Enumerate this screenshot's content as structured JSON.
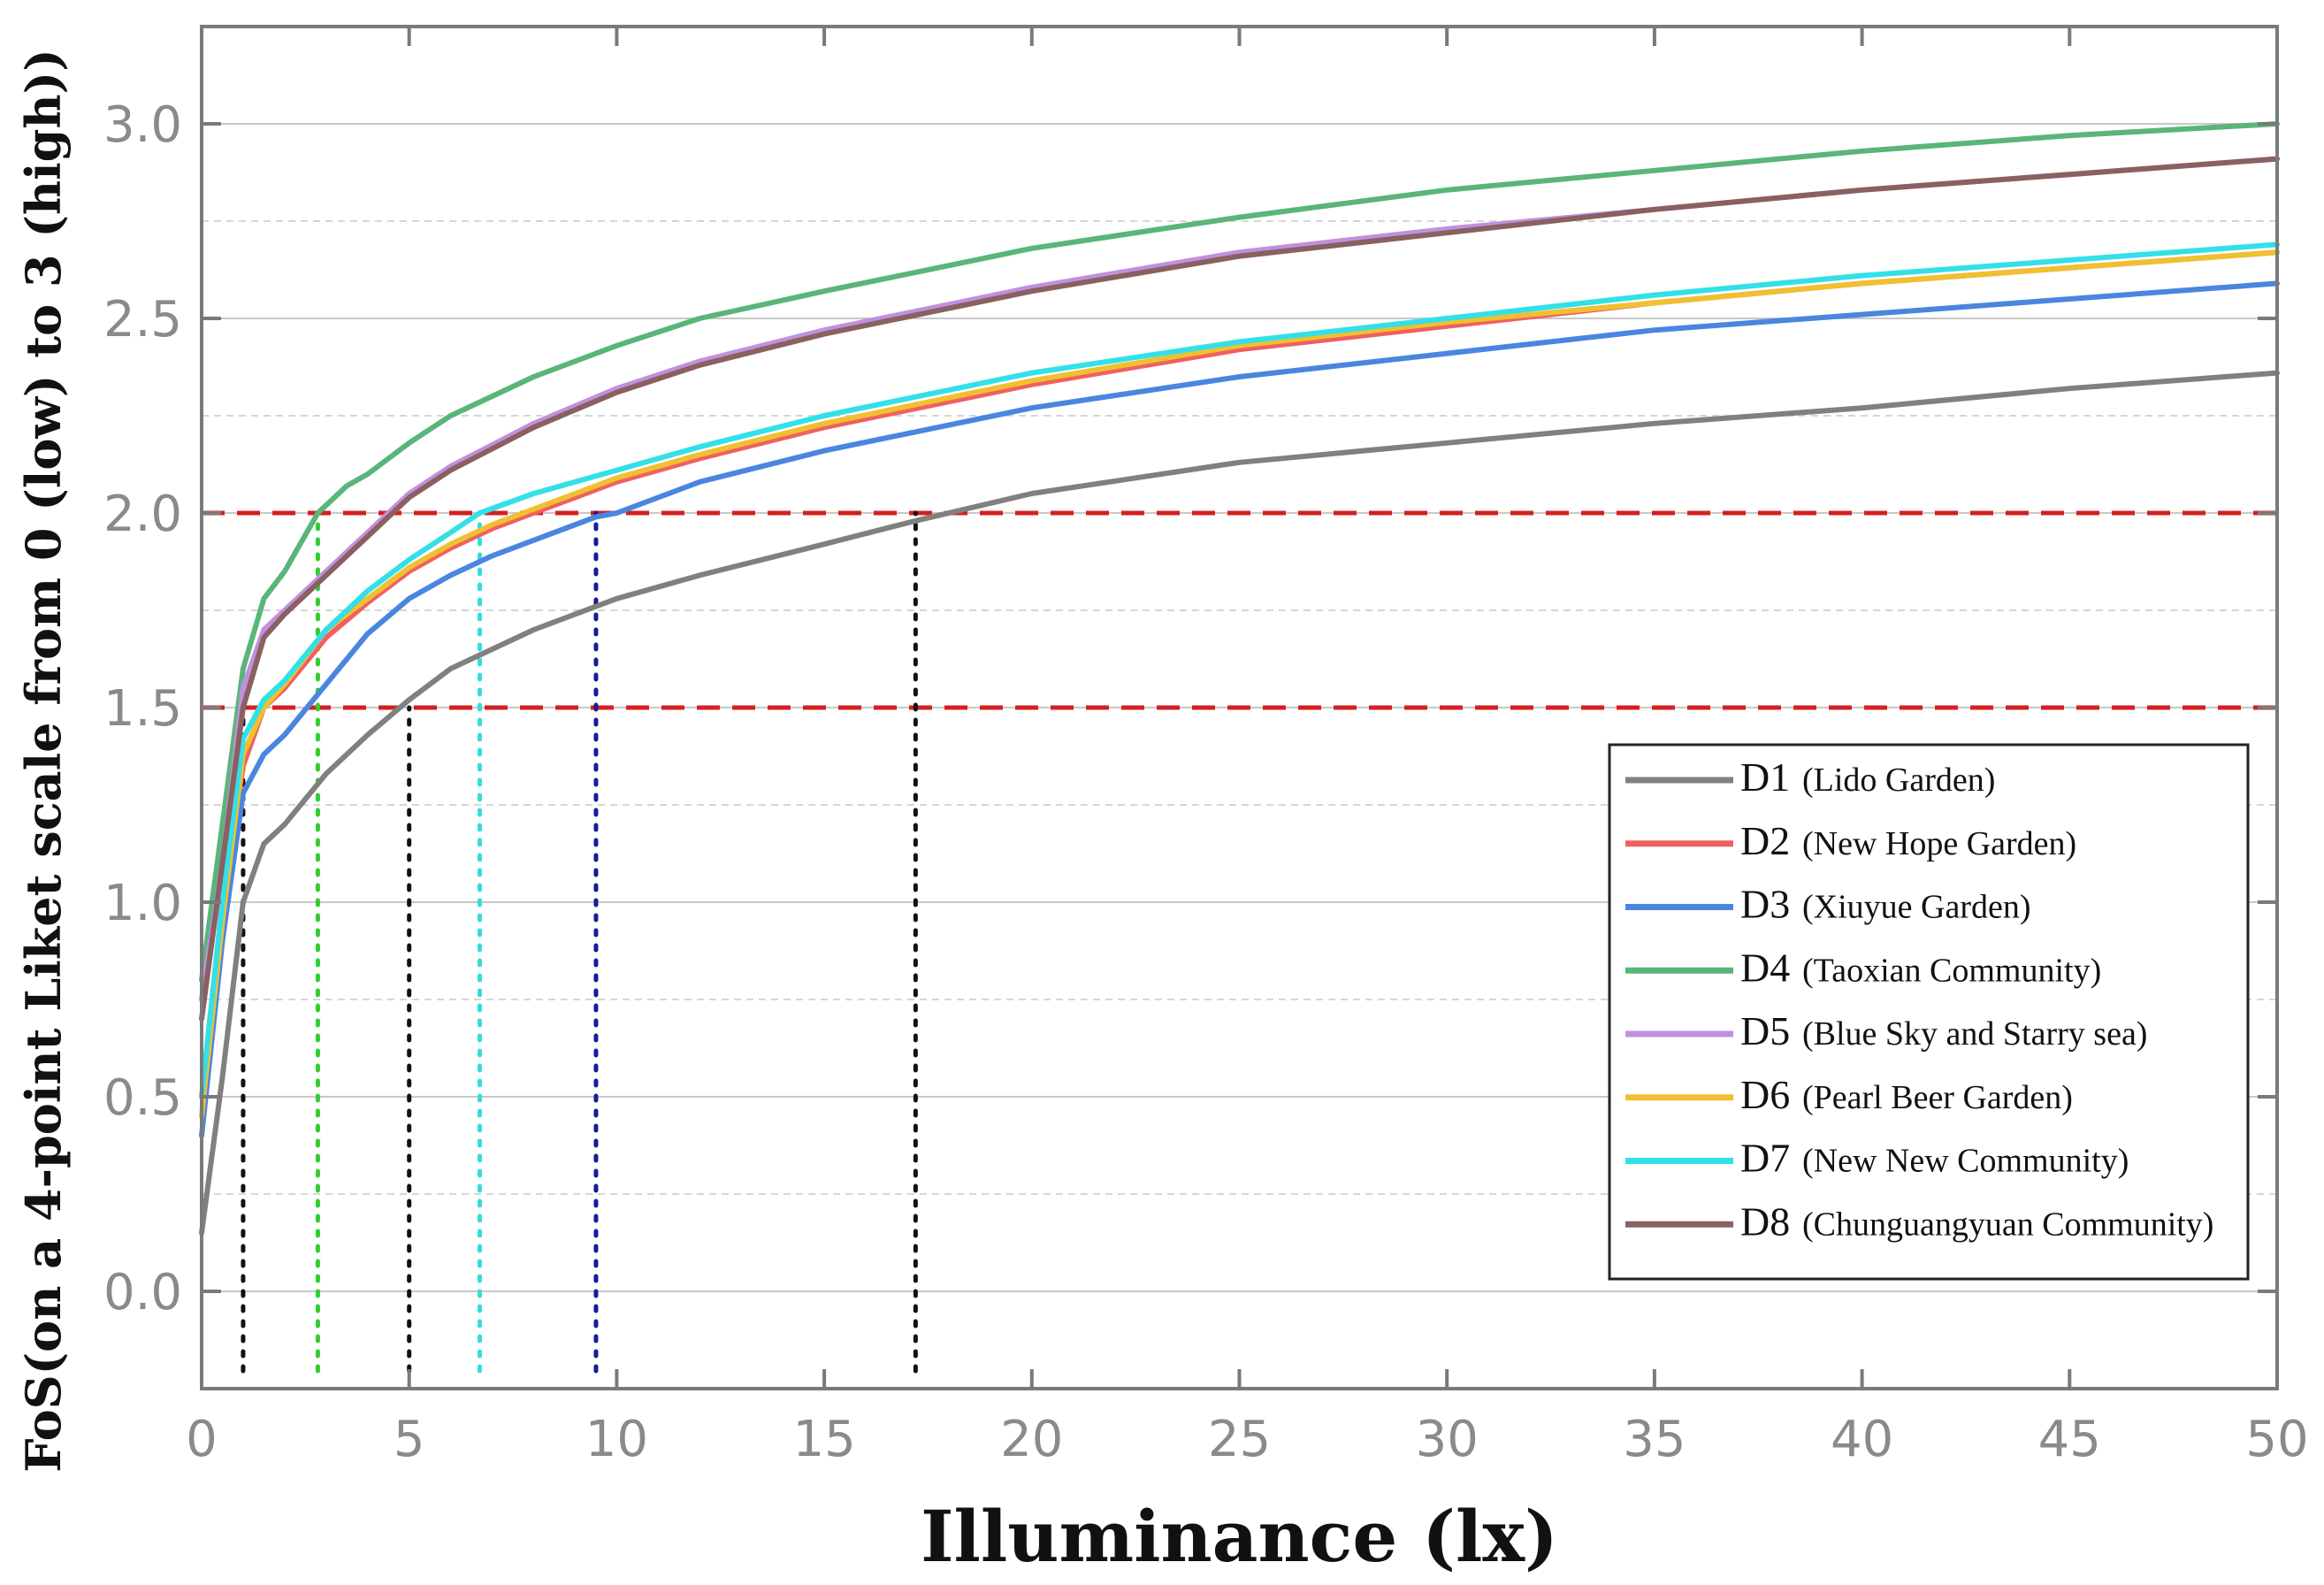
{
  "chart_data": {
    "type": "line",
    "title": "",
    "xlabel": "Illuminance (lx)",
    "ylabel": "FoS(on a 4-point Liket scale from 0 (low) to 3 (high))",
    "xlim": [
      0,
      50
    ],
    "ylim": [
      -0.25,
      3.25
    ],
    "xticks": [
      0,
      5,
      10,
      15,
      20,
      25,
      30,
      35,
      40,
      45,
      50
    ],
    "yticks": [
      0.0,
      0.5,
      1.0,
      1.5,
      2.0,
      2.5,
      3.0
    ],
    "xtick_labels": [
      "0",
      "5",
      "10",
      "15",
      "20",
      "25",
      "30",
      "35",
      "40",
      "45",
      "50"
    ],
    "ytick_labels": [
      "0.0",
      "0.5",
      "1.0",
      "1.5",
      "2.0",
      "2.5",
      "3.0"
    ],
    "grid": true,
    "legend_position": "lower-right",
    "reference_lines": [
      {
        "y": 2.0,
        "color": "#d42020",
        "style": "dashed"
      },
      {
        "y": 1.5,
        "color": "#d42020",
        "style": "dashed"
      }
    ],
    "threshold_markers": [
      {
        "x": 1.0,
        "y_top": 1.5,
        "color": "#111111"
      },
      {
        "x": 2.8,
        "y_top": 2.0,
        "color": "#33cc33"
      },
      {
        "x": 5.0,
        "y_top": 1.5,
        "color": "#111111"
      },
      {
        "x": 6.7,
        "y_top": 2.0,
        "color": "#33dddd"
      },
      {
        "x": 9.5,
        "y_top": 2.0,
        "color": "#1a1a99"
      },
      {
        "x": 17.2,
        "y_top": 2.0,
        "color": "#111111"
      }
    ],
    "series": [
      {
        "name": "D1",
        "description": "(Lido Garden)",
        "color": "#808080",
        "x": [
          0,
          0.5,
          1,
          1.5,
          2,
          3,
          4,
          5,
          6,
          8,
          10,
          12,
          15,
          17.2,
          20,
          25,
          30,
          35,
          40,
          45,
          50
        ],
        "y": [
          0.15,
          0.55,
          1.0,
          1.15,
          1.2,
          1.33,
          1.43,
          1.52,
          1.6,
          1.7,
          1.78,
          1.84,
          1.92,
          1.98,
          2.05,
          2.13,
          2.18,
          2.23,
          2.27,
          2.32,
          2.36
        ]
      },
      {
        "name": "D2",
        "description": "(New Hope Garden)",
        "color": "#f06060",
        "x": [
          0,
          0.5,
          1,
          1.5,
          2,
          3,
          4,
          5,
          6,
          7,
          8,
          10,
          12,
          15,
          20,
          25,
          30,
          35,
          40,
          45,
          50
        ],
        "y": [
          0.5,
          1.0,
          1.35,
          1.5,
          1.55,
          1.68,
          1.77,
          1.85,
          1.91,
          1.96,
          2.0,
          2.08,
          2.14,
          2.22,
          2.33,
          2.42,
          2.48,
          2.54,
          2.59,
          2.63,
          2.67
        ]
      },
      {
        "name": "D3",
        "description": "(Xiuyue Garden)",
        "color": "#4a86e0",
        "x": [
          0,
          0.5,
          1,
          1.5,
          2,
          3,
          4,
          5,
          6,
          7,
          8,
          9.5,
          10,
          12,
          15,
          20,
          25,
          30,
          35,
          40,
          45,
          50
        ],
        "y": [
          0.4,
          0.9,
          1.28,
          1.38,
          1.43,
          1.56,
          1.69,
          1.78,
          1.84,
          1.89,
          1.93,
          1.99,
          2.0,
          2.08,
          2.16,
          2.27,
          2.35,
          2.41,
          2.47,
          2.51,
          2.55,
          2.59
        ]
      },
      {
        "name": "D4",
        "description": "(Taoxian Community)",
        "color": "#5ab57a",
        "x": [
          0,
          0.5,
          1,
          1.5,
          2,
          2.8,
          3.5,
          4,
          5,
          6,
          7,
          8,
          10,
          12,
          15,
          20,
          25,
          30,
          35,
          40,
          45,
          50
        ],
        "y": [
          0.8,
          1.2,
          1.6,
          1.78,
          1.85,
          2.0,
          2.07,
          2.1,
          2.18,
          2.25,
          2.3,
          2.35,
          2.43,
          2.5,
          2.57,
          2.68,
          2.76,
          2.83,
          2.88,
          2.93,
          2.97,
          3.0
        ]
      },
      {
        "name": "D5",
        "description": "(Blue Sky and Starry sea)",
        "color": "#c090e0",
        "x": [
          0,
          0.5,
          1,
          1.5,
          2,
          3,
          4,
          5,
          6,
          8,
          10,
          12,
          15,
          20,
          25,
          30,
          35,
          40,
          45,
          50
        ],
        "y": [
          0.75,
          1.1,
          1.55,
          1.7,
          1.75,
          1.85,
          1.95,
          2.05,
          2.12,
          2.23,
          2.32,
          2.39,
          2.47,
          2.58,
          2.67,
          2.73,
          2.78,
          2.83,
          2.87,
          2.91
        ]
      },
      {
        "name": "D6",
        "description": "(Pearl Beer Garden)",
        "color": "#f0c030",
        "x": [
          0,
          0.5,
          1,
          1.5,
          2,
          3,
          4,
          5,
          6,
          7,
          8,
          10,
          12,
          15,
          20,
          25,
          30,
          35,
          40,
          45,
          50
        ],
        "y": [
          0.45,
          0.95,
          1.38,
          1.5,
          1.56,
          1.7,
          1.78,
          1.86,
          1.92,
          1.97,
          2.01,
          2.09,
          2.15,
          2.23,
          2.34,
          2.43,
          2.49,
          2.54,
          2.59,
          2.63,
          2.67
        ]
      },
      {
        "name": "D7",
        "description": "(New New Community)",
        "color": "#33e0e8",
        "x": [
          0,
          0.5,
          1,
          1.5,
          2,
          3,
          4,
          5,
          6,
          6.7,
          8,
          10,
          12,
          15,
          20,
          25,
          30,
          35,
          40,
          45,
          50
        ],
        "y": [
          0.5,
          1.0,
          1.42,
          1.52,
          1.57,
          1.7,
          1.8,
          1.88,
          1.95,
          2.0,
          2.05,
          2.11,
          2.17,
          2.25,
          2.36,
          2.44,
          2.5,
          2.56,
          2.61,
          2.65,
          2.69
        ]
      },
      {
        "name": "D8",
        "description": "(Chunguangyuan Community)",
        "color": "#8a6060",
        "x": [
          0,
          0.5,
          1,
          1.5,
          2,
          3,
          4,
          5,
          6,
          8,
          10,
          12,
          15,
          20,
          25,
          30,
          35,
          40,
          45,
          50
        ],
        "y": [
          0.7,
          1.1,
          1.5,
          1.68,
          1.74,
          1.84,
          1.94,
          2.04,
          2.11,
          2.22,
          2.31,
          2.38,
          2.46,
          2.57,
          2.66,
          2.72,
          2.78,
          2.83,
          2.87,
          2.91
        ]
      }
    ]
  }
}
